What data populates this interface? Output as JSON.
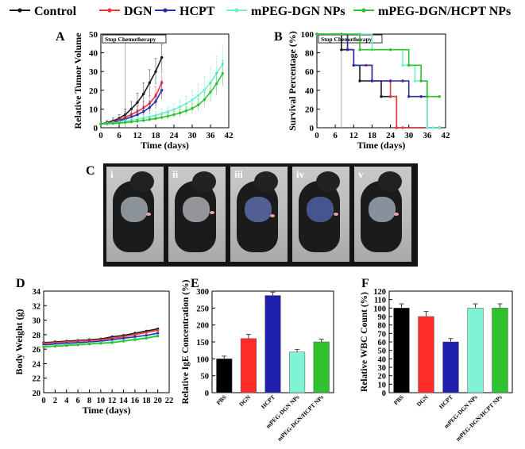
{
  "legend": [
    {
      "label": "Control",
      "color": "#1a1a1a"
    },
    {
      "label": "DGN",
      "color": "#e8383d"
    },
    {
      "label": "HCPT",
      "color": "#2e2ea8"
    },
    {
      "label": "mPEG-DGN NPs",
      "color": "#6ff0d0"
    },
    {
      "label": "mPEG-DGN/HCPT NPs",
      "color": "#2ec32e"
    }
  ],
  "panel_labels": {
    "a": "A",
    "b": "B",
    "c": "C",
    "d": "D",
    "e": "E",
    "f": "F"
  },
  "photo_labels": [
    "i",
    "ii",
    "iii",
    "iv",
    "v"
  ],
  "chart_data": [
    {
      "id": "A",
      "type": "line",
      "xlabel": "Time (days)",
      "ylabel": "Relative Tumor Volume",
      "xlim": [
        0,
        42
      ],
      "ylim": [
        0,
        50
      ],
      "xticks": [
        0,
        6,
        12,
        18,
        24,
        30,
        36,
        42
      ],
      "yticks": [
        0,
        10,
        20,
        30,
        40,
        50
      ],
      "annotation": "Stop Chemotherapy",
      "annotation_x": 8,
      "series": [
        {
          "name": "Control",
          "color": "#1a1a1a",
          "x": [
            0,
            2,
            4,
            6,
            8,
            10,
            12,
            14,
            16,
            18,
            20
          ],
          "y": [
            2,
            2.8,
            3.7,
            5,
            7,
            10,
            13.5,
            18,
            24,
            30,
            37.5
          ],
          "err": [
            0.5,
            1,
            1.5,
            2,
            3,
            4,
            5,
            6,
            7,
            7,
            7
          ]
        },
        {
          "name": "DGN",
          "color": "#e8383d",
          "x": [
            0,
            2,
            4,
            6,
            8,
            10,
            12,
            14,
            16,
            18,
            20
          ],
          "y": [
            2,
            2.5,
            3.2,
            4.2,
            5.5,
            7,
            8.7,
            10.5,
            13,
            17,
            24
          ],
          "err": [
            0.5,
            0.8,
            1,
            1.5,
            2,
            2.5,
            3,
            3.5,
            4,
            5,
            6
          ]
        },
        {
          "name": "HCPT",
          "color": "#2e2ea8",
          "x": [
            0,
            2,
            4,
            6,
            8,
            10,
            12,
            14,
            16,
            18,
            20
          ],
          "y": [
            2,
            2.4,
            3,
            3.7,
            4.6,
            5.7,
            7,
            8.6,
            10.8,
            14,
            20
          ],
          "err": [
            0.5,
            0.7,
            0.9,
            1.2,
            1.6,
            2,
            2.5,
            3,
            3.5,
            4,
            5
          ]
        },
        {
          "name": "mPEG-DGN NPs",
          "color": "#6ff0d0",
          "x": [
            0,
            2,
            4,
            6,
            8,
            10,
            12,
            14,
            16,
            18,
            20,
            22,
            24,
            26,
            28,
            30,
            32,
            34,
            36,
            38,
            40
          ],
          "y": [
            2,
            2.3,
            2.6,
            3,
            3.5,
            4,
            4.6,
            5.2,
            5.9,
            6.7,
            7.6,
            8.6,
            9.8,
            11.2,
            12.8,
            14.8,
            17.2,
            20.2,
            24,
            29,
            34
          ],
          "err": [
            0.5,
            0.6,
            0.7,
            0.8,
            1,
            1.2,
            1.4,
            1.6,
            1.8,
            2,
            2.3,
            2.6,
            3,
            3.5,
            4,
            5,
            6,
            7,
            8,
            9,
            10
          ]
        },
        {
          "name": "mPEG-DGN/HCPT NPs",
          "color": "#2ec32e",
          "x": [
            0,
            2,
            4,
            6,
            8,
            10,
            12,
            14,
            16,
            18,
            20,
            22,
            24,
            26,
            28,
            30,
            32,
            34,
            36,
            38,
            40
          ],
          "y": [
            2,
            2.1,
            2.3,
            2.5,
            2.8,
            3.1,
            3.5,
            3.9,
            4.4,
            4.9,
            5.5,
            6.2,
            7,
            7.9,
            9,
            10.3,
            12.2,
            15,
            19,
            23.5,
            29
          ],
          "err": [
            0.4,
            0.5,
            0.5,
            0.6,
            0.7,
            0.8,
            0.9,
            1,
            1.1,
            1.2,
            1.4,
            1.6,
            1.8,
            2,
            2.3,
            2.7,
            3.2,
            4,
            5,
            6,
            7
          ]
        }
      ]
    },
    {
      "id": "B",
      "type": "step",
      "xlabel": "Time (days)",
      "ylabel": "Survival Percentage (%)",
      "xlim": [
        0,
        42
      ],
      "ylim": [
        0,
        100
      ],
      "xticks": [
        0,
        6,
        12,
        18,
        24,
        30,
        36,
        42
      ],
      "yticks": [
        0,
        20,
        40,
        60,
        80,
        100
      ],
      "annotation": "Stop Chemotherapy",
      "annotation_x": 8,
      "series": [
        {
          "name": "Control",
          "color": "#1a1a1a",
          "x": [
            0,
            8,
            12,
            14,
            18,
            21,
            24,
            26,
            40
          ],
          "y": [
            100,
            83.3,
            66.7,
            50,
            50,
            33.3,
            33.3,
            0,
            0
          ]
        },
        {
          "name": "DGN",
          "color": "#e8383d",
          "x": [
            0,
            10,
            12,
            16,
            18,
            24,
            26,
            28,
            40
          ],
          "y": [
            100,
            83.3,
            66.7,
            66.7,
            50,
            33.3,
            0,
            0,
            0
          ]
        },
        {
          "name": "HCPT",
          "color": "#2e2ea8",
          "x": [
            0,
            10,
            12,
            18,
            24,
            28,
            30,
            34,
            36,
            40
          ],
          "y": [
            100,
            83.3,
            66.7,
            50,
            50,
            50,
            33.3,
            33.3,
            0,
            0
          ]
        },
        {
          "name": "mPEG-DGN NPs",
          "color": "#6ff0d0",
          "x": [
            0,
            14,
            18,
            24,
            28,
            30,
            32,
            34,
            36,
            38,
            40
          ],
          "y": [
            100,
            100,
            83.3,
            83.3,
            66.7,
            66.7,
            50,
            50,
            0,
            0,
            0
          ]
        },
        {
          "name": "mPEG-DGN/HCPT NPs",
          "color": "#2ec32e",
          "x": [
            0,
            8,
            14,
            24,
            30,
            34,
            36,
            40
          ],
          "y": [
            100,
            100,
            83.3,
            83.3,
            66.7,
            50,
            33.3,
            33.3
          ]
        }
      ]
    },
    {
      "id": "D",
      "type": "line",
      "xlabel": "Time (days)",
      "ylabel": "Body Weight (g)",
      "xlim": [
        0,
        22
      ],
      "ylim": [
        20,
        34
      ],
      "xticks": [
        0,
        2,
        4,
        6,
        8,
        10,
        12,
        14,
        16,
        18,
        20,
        22
      ],
      "yticks": [
        20,
        22,
        24,
        26,
        28,
        30,
        32,
        34
      ],
      "series": [
        {
          "name": "Control",
          "color": "#1a1a1a",
          "x": [
            0,
            2,
            4,
            6,
            8,
            10,
            12,
            14,
            16,
            18,
            20
          ],
          "y": [
            26.9,
            27,
            27.1,
            27.2,
            27.3,
            27.4,
            27.7,
            27.9,
            28.2,
            28.5,
            28.8
          ]
        },
        {
          "name": "DGN",
          "color": "#e8383d",
          "x": [
            0,
            2,
            4,
            6,
            8,
            10,
            12,
            14,
            16,
            18,
            20
          ],
          "y": [
            26.8,
            26.9,
            27,
            27.1,
            27.2,
            27.3,
            27.5,
            27.7,
            28,
            28.3,
            28.6
          ]
        },
        {
          "name": "HCPT",
          "color": "#2e2ea8",
          "x": [
            0,
            2,
            4,
            6,
            8,
            10,
            12,
            14,
            16,
            18,
            20
          ],
          "y": [
            26.6,
            26.7,
            26.8,
            26.9,
            27,
            27.1,
            27.3,
            27.5,
            27.7,
            27.9,
            28.2
          ]
        },
        {
          "name": "mPEG-DGN NPs",
          "color": "#6ff0d0",
          "x": [
            0,
            2,
            4,
            6,
            8,
            10,
            12,
            14,
            16,
            18,
            20
          ],
          "y": [
            26.4,
            26.5,
            26.6,
            26.7,
            26.8,
            26.9,
            27,
            27.2,
            27.4,
            27.6,
            27.9
          ]
        },
        {
          "name": "mPEG-DGN/HCPT NPs",
          "color": "#2ec32e",
          "x": [
            0,
            2,
            4,
            6,
            8,
            10,
            12,
            14,
            16,
            18,
            20
          ],
          "y": [
            26.3,
            26.4,
            26.5,
            26.6,
            26.7,
            26.8,
            26.9,
            27.1,
            27.3,
            27.5,
            27.8
          ]
        }
      ]
    },
    {
      "id": "E",
      "type": "bar",
      "ylabel": "Relative IgE Concentration (%)",
      "ylim": [
        0,
        300
      ],
      "yticks": [
        0,
        50,
        100,
        150,
        200,
        250,
        300
      ],
      "categories": [
        "PBS",
        "DGN",
        "HCPT",
        "mPEG-DGN NPs",
        "mPEG-DGN/HCPT NPs"
      ],
      "values": [
        100,
        160,
        287,
        120,
        150
      ],
      "errors": [
        8,
        12,
        10,
        8,
        8
      ],
      "colors": [
        "#000000",
        "#ff2b2b",
        "#1f1fae",
        "#7ff3d4",
        "#2ec32e"
      ]
    },
    {
      "id": "F",
      "type": "bar",
      "ylabel": "Relative WBC Count (%)",
      "ylim": [
        0,
        120
      ],
      "yticks": [
        0,
        10,
        20,
        30,
        40,
        50,
        60,
        70,
        80,
        90,
        100,
        110,
        120
      ],
      "categories": [
        "PBS",
        "DGN",
        "HCPT",
        "mPEG-DGN NPs",
        "mPEG-DGN/HCPT NPs"
      ],
      "values": [
        100,
        90,
        60,
        100,
        100
      ],
      "errors": [
        5,
        6,
        4,
        5,
        5
      ],
      "colors": [
        "#000000",
        "#ff2b2b",
        "#1f1fae",
        "#7ff3d4",
        "#2ec32e"
      ]
    }
  ]
}
